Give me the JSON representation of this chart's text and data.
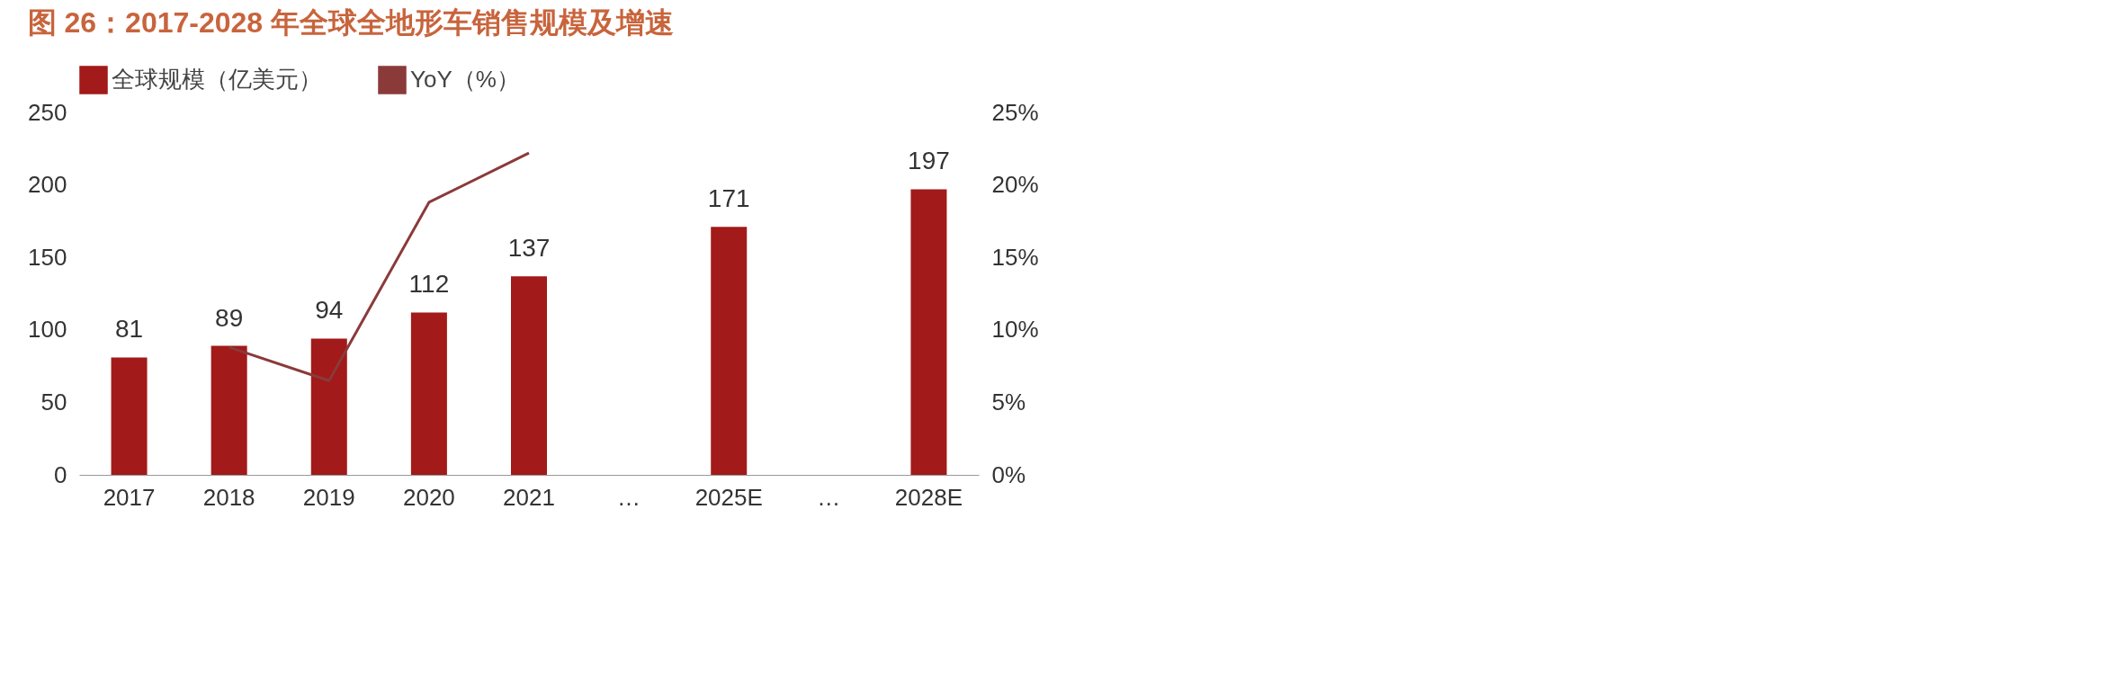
{
  "chart_data": {
    "type": "bar",
    "title": "图 26：2017-2028 年全球全地形车销售规模及增速",
    "categories": [
      "2017",
      "2018",
      "2019",
      "2020",
      "2021",
      "…",
      "2025E",
      "…",
      "2028E"
    ],
    "series": [
      {
        "name": "全球规模（亿美元）",
        "color": "#a21a19",
        "values": [
          81,
          89,
          94,
          112,
          137,
          null,
          171,
          null,
          197
        ],
        "value_labels": [
          "81",
          "89",
          "94",
          "112",
          "137",
          null,
          "171",
          null,
          "197"
        ]
      },
      {
        "name": "YoY（%）",
        "type": "line",
        "axis": "y2",
        "color": "#8b3a3a",
        "values": [
          null,
          8.8,
          6.5,
          18.8,
          22.2,
          null,
          null,
          null,
          null
        ]
      }
    ],
    "ylim": [
      0,
      250
    ],
    "yticks": [
      0,
      50,
      100,
      150,
      200,
      250
    ],
    "y2lim": [
      0,
      25
    ],
    "y2ticks": [
      {
        "value": 0,
        "label": "0%"
      },
      {
        "value": 5,
        "label": "5%"
      },
      {
        "value": 10,
        "label": "10%"
      },
      {
        "value": 15,
        "label": "15%"
      },
      {
        "value": 20,
        "label": "20%"
      },
      {
        "value": 25,
        "label": "25%"
      }
    ],
    "legend": "top",
    "grid": false,
    "marker": "none",
    "line_style": "solid"
  }
}
